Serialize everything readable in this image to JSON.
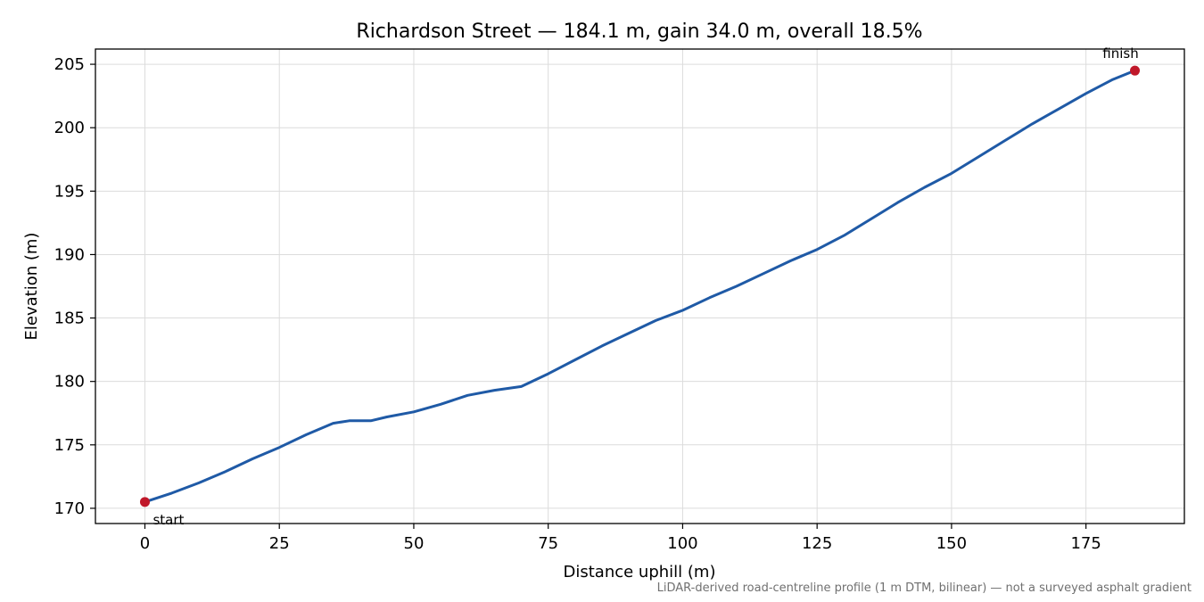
{
  "chart_data": {
    "type": "line",
    "title": "Richardson Street — 184.1 m, gain 34.0 m, overall 18.5%",
    "xlabel": "Distance uphill (m)",
    "ylabel": "Elevation (m)",
    "xlim": [
      -9.2,
      193.3
    ],
    "ylim": [
      168.8,
      206.2
    ],
    "xticks": [
      0,
      25,
      50,
      75,
      100,
      125,
      150,
      175
    ],
    "yticks": [
      170,
      175,
      180,
      185,
      190,
      195,
      200,
      205
    ],
    "grid": true,
    "line_color": "#1f5aa6",
    "marker_color": "#c0182a",
    "series": [
      {
        "x": [
          0,
          5,
          10,
          15,
          20,
          25,
          30,
          35,
          38,
          42,
          45,
          50,
          55,
          60,
          65,
          70,
          75,
          80,
          85,
          90,
          95,
          100,
          105,
          110,
          115,
          120,
          125,
          130,
          135,
          140,
          145,
          150,
          155,
          160,
          165,
          170,
          175,
          180,
          184.1
        ],
        "y": [
          170.5,
          171.2,
          172.0,
          172.9,
          173.9,
          174.8,
          175.8,
          176.7,
          176.9,
          176.9,
          177.2,
          177.6,
          178.2,
          178.9,
          179.3,
          179.6,
          180.6,
          181.7,
          182.8,
          183.8,
          184.8,
          185.6,
          186.6,
          187.5,
          188.5,
          189.5,
          190.4,
          191.5,
          192.8,
          194.1,
          195.3,
          196.4,
          197.7,
          199.0,
          200.3,
          201.5,
          202.7,
          203.8,
          204.5
        ]
      }
    ],
    "annotations": [
      {
        "label": "start",
        "x": 0,
        "y": 170.5
      },
      {
        "label": "finish",
        "x": 184.1,
        "y": 204.5
      }
    ],
    "footnote": "LiDAR-derived road-centreline profile (1 m DTM, bilinear) — not a surveyed asphalt gradient"
  }
}
